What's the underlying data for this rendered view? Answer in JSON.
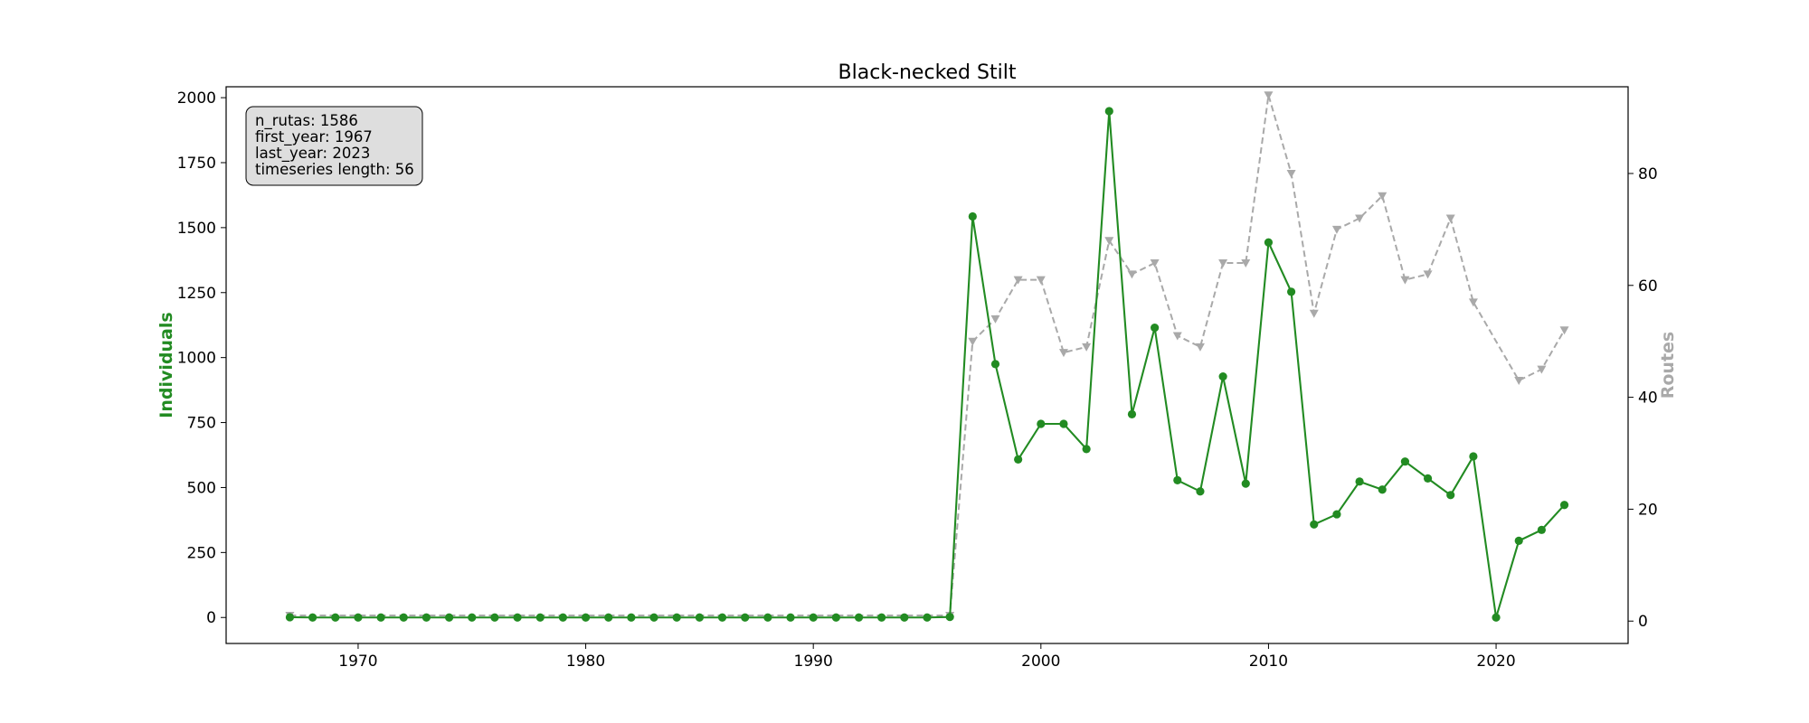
{
  "chart_data": {
    "type": "line",
    "title": "Black-necked Stilt",
    "xlabel": "",
    "ylabel_left": "Individuals",
    "ylabel_right": "Routes",
    "xlim": [
      1964.2,
      2025.8
    ],
    "ylim_left": [
      -100,
      2042
    ],
    "ylim_right": [
      -4,
      95.5
    ],
    "x_ticks": [
      1970,
      1980,
      1990,
      2000,
      2010,
      2020
    ],
    "y_left_ticks": [
      0,
      250,
      500,
      750,
      1000,
      1250,
      1500,
      1750,
      2000
    ],
    "y_right_ticks": [
      0,
      20,
      40,
      60,
      80
    ],
    "grid": false,
    "info_box": [
      "n_rutas: 1586",
      "first_year: 1967",
      "last_year: 2023",
      "timeseries length: 56"
    ],
    "colors": {
      "individuals": "#228b22",
      "routes": "#a9a9a9",
      "info_box_bg": "#dedede"
    },
    "years": [
      1967,
      1968,
      1969,
      1970,
      1971,
      1972,
      1973,
      1974,
      1975,
      1976,
      1977,
      1978,
      1979,
      1980,
      1981,
      1982,
      1983,
      1984,
      1985,
      1986,
      1987,
      1988,
      1989,
      1990,
      1991,
      1992,
      1993,
      1994,
      1995,
      1996,
      1997,
      1998,
      1999,
      2000,
      2001,
      2002,
      2003,
      2004,
      2005,
      2006,
      2007,
      2008,
      2009,
      2010,
      2011,
      2012,
      2013,
      2014,
      2015,
      2016,
      2017,
      2018,
      2019,
      2020,
      2021,
      2022,
      2023
    ],
    "series": [
      {
        "axis": "left",
        "marker": "circle",
        "dash": "solid",
        "values": [
          1,
          0,
          0,
          0,
          0,
          0,
          0,
          0,
          0,
          0,
          0,
          0,
          0,
          0,
          0,
          0,
          0,
          0,
          0,
          0,
          0,
          0,
          0,
          0,
          0,
          0,
          0,
          0,
          0,
          2,
          1543,
          975,
          608,
          745,
          745,
          648,
          1948,
          782,
          1115,
          528,
          485,
          927,
          515,
          1443,
          1253,
          358,
          397,
          523,
          492,
          600,
          535,
          471,
          620,
          0,
          295,
          337,
          433
        ]
      },
      {
        "axis": "right",
        "marker": "triangle-down",
        "dash": "dashed",
        "values": [
          1,
          null,
          null,
          null,
          null,
          null,
          null,
          null,
          null,
          null,
          null,
          null,
          null,
          null,
          null,
          null,
          null,
          null,
          null,
          null,
          null,
          null,
          null,
          null,
          null,
          null,
          null,
          null,
          null,
          1,
          50,
          54,
          61,
          61,
          48,
          49,
          68,
          62,
          64,
          51,
          49,
          64,
          64,
          94,
          80,
          55,
          70,
          72,
          76,
          61,
          62,
          72,
          57,
          null,
          43,
          45,
          52
        ]
      }
    ]
  }
}
